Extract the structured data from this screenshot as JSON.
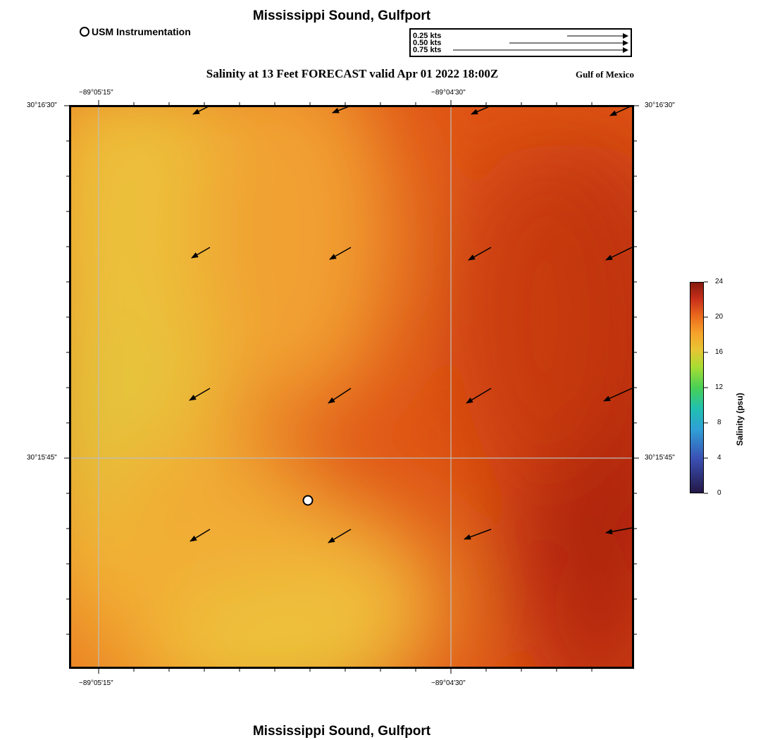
{
  "title": "Mississippi Sound, Gulfport",
  "bottom_title": "Mississippi Sound, Gulfport",
  "legend": {
    "label": "USM Instrumentation"
  },
  "vector_key": [
    "0.25 kts",
    "0.50 kts",
    "0.75 kts"
  ],
  "subtitle": "Salinity at 13 Feet FORECAST valid Apr 01 2022 18:00Z",
  "region_label": "Gulf of Mexico",
  "axes": {
    "top_lon": [
      "−89°05'15\"",
      "−89°04'30\""
    ],
    "bottom_lon": [
      "−89°05'15\"",
      "−89°04'30\""
    ],
    "left_lat": [
      "30°16'30\"",
      "30°15'45\""
    ],
    "right_lat": [
      "30°16'30\"",
      "30°15'45\""
    ]
  },
  "colorbar": {
    "title": "Salinity (psu)",
    "ticks": [
      "24",
      "20",
      "16",
      "12",
      "8",
      "4",
      "0"
    ],
    "range": [
      0,
      24
    ]
  },
  "station_marker": "USM Instrumentation",
  "current_direction": "southwest"
}
